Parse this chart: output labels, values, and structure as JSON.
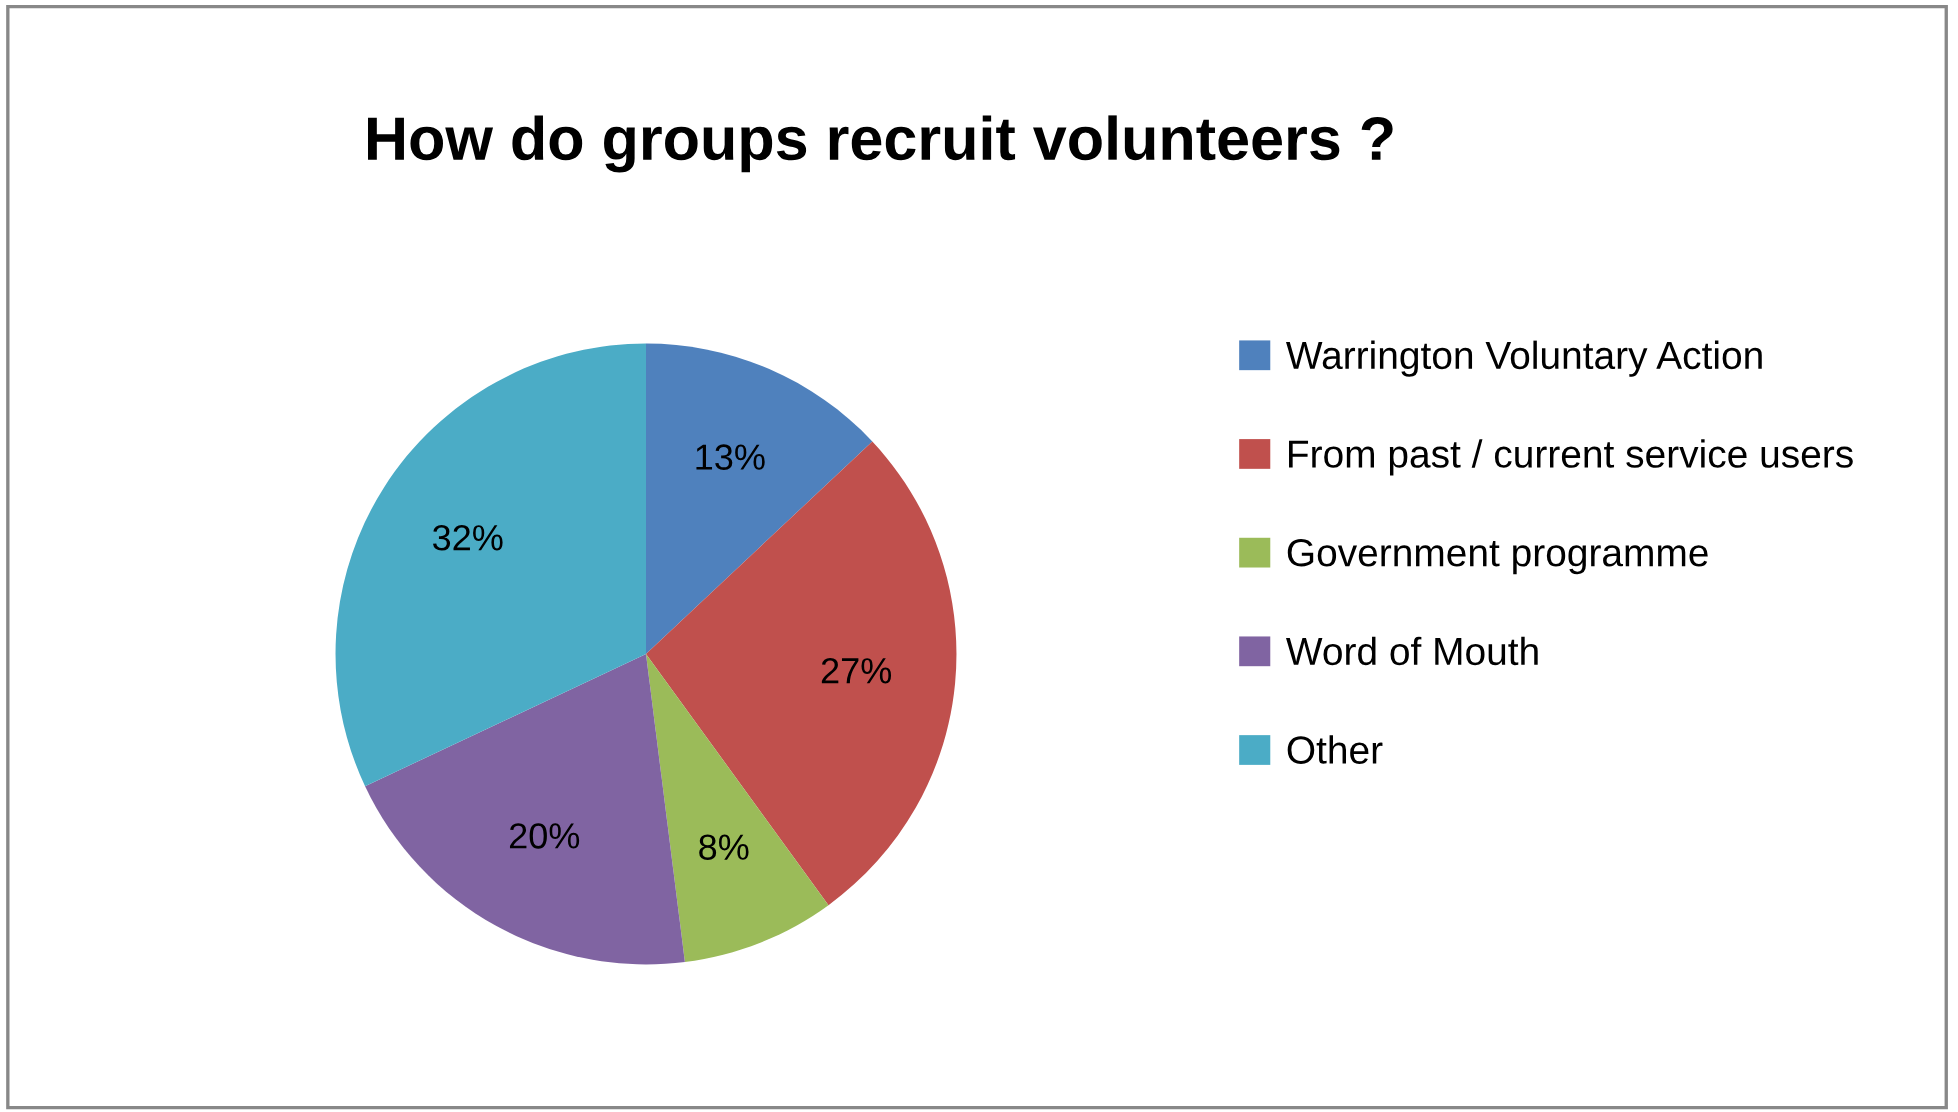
{
  "chart_data": {
    "type": "pie",
    "title": "How do groups recruit volunteers ?",
    "categories": [
      "Warrington Voluntary Action",
      "From past / current service users",
      "Government programme",
      "Word of Mouth",
      "Other"
    ],
    "values": [
      13,
      27,
      8,
      20,
      32
    ],
    "colors": [
      "#4f81bd",
      "#c0504d",
      "#9bbb59",
      "#8064a2",
      "#4bacc6"
    ],
    "value_labels": [
      "13%",
      "27%",
      "8%",
      "20%",
      "32%"
    ],
    "legend": "right"
  }
}
